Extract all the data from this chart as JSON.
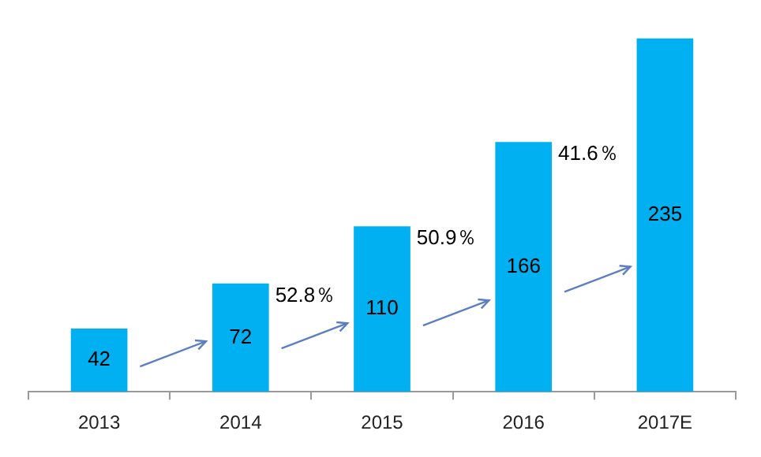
{
  "chart_data": {
    "type": "bar",
    "categories": [
      "2013",
      "2014",
      "2015",
      "2016",
      "2017E"
    ],
    "values": [
      42,
      72,
      110,
      166,
      235
    ],
    "color": "#00b0f0",
    "data_labels": true,
    "grid": false,
    "legend": false,
    "annotations": [
      "52.8％",
      "50.9％",
      "41.6％"
    ]
  }
}
